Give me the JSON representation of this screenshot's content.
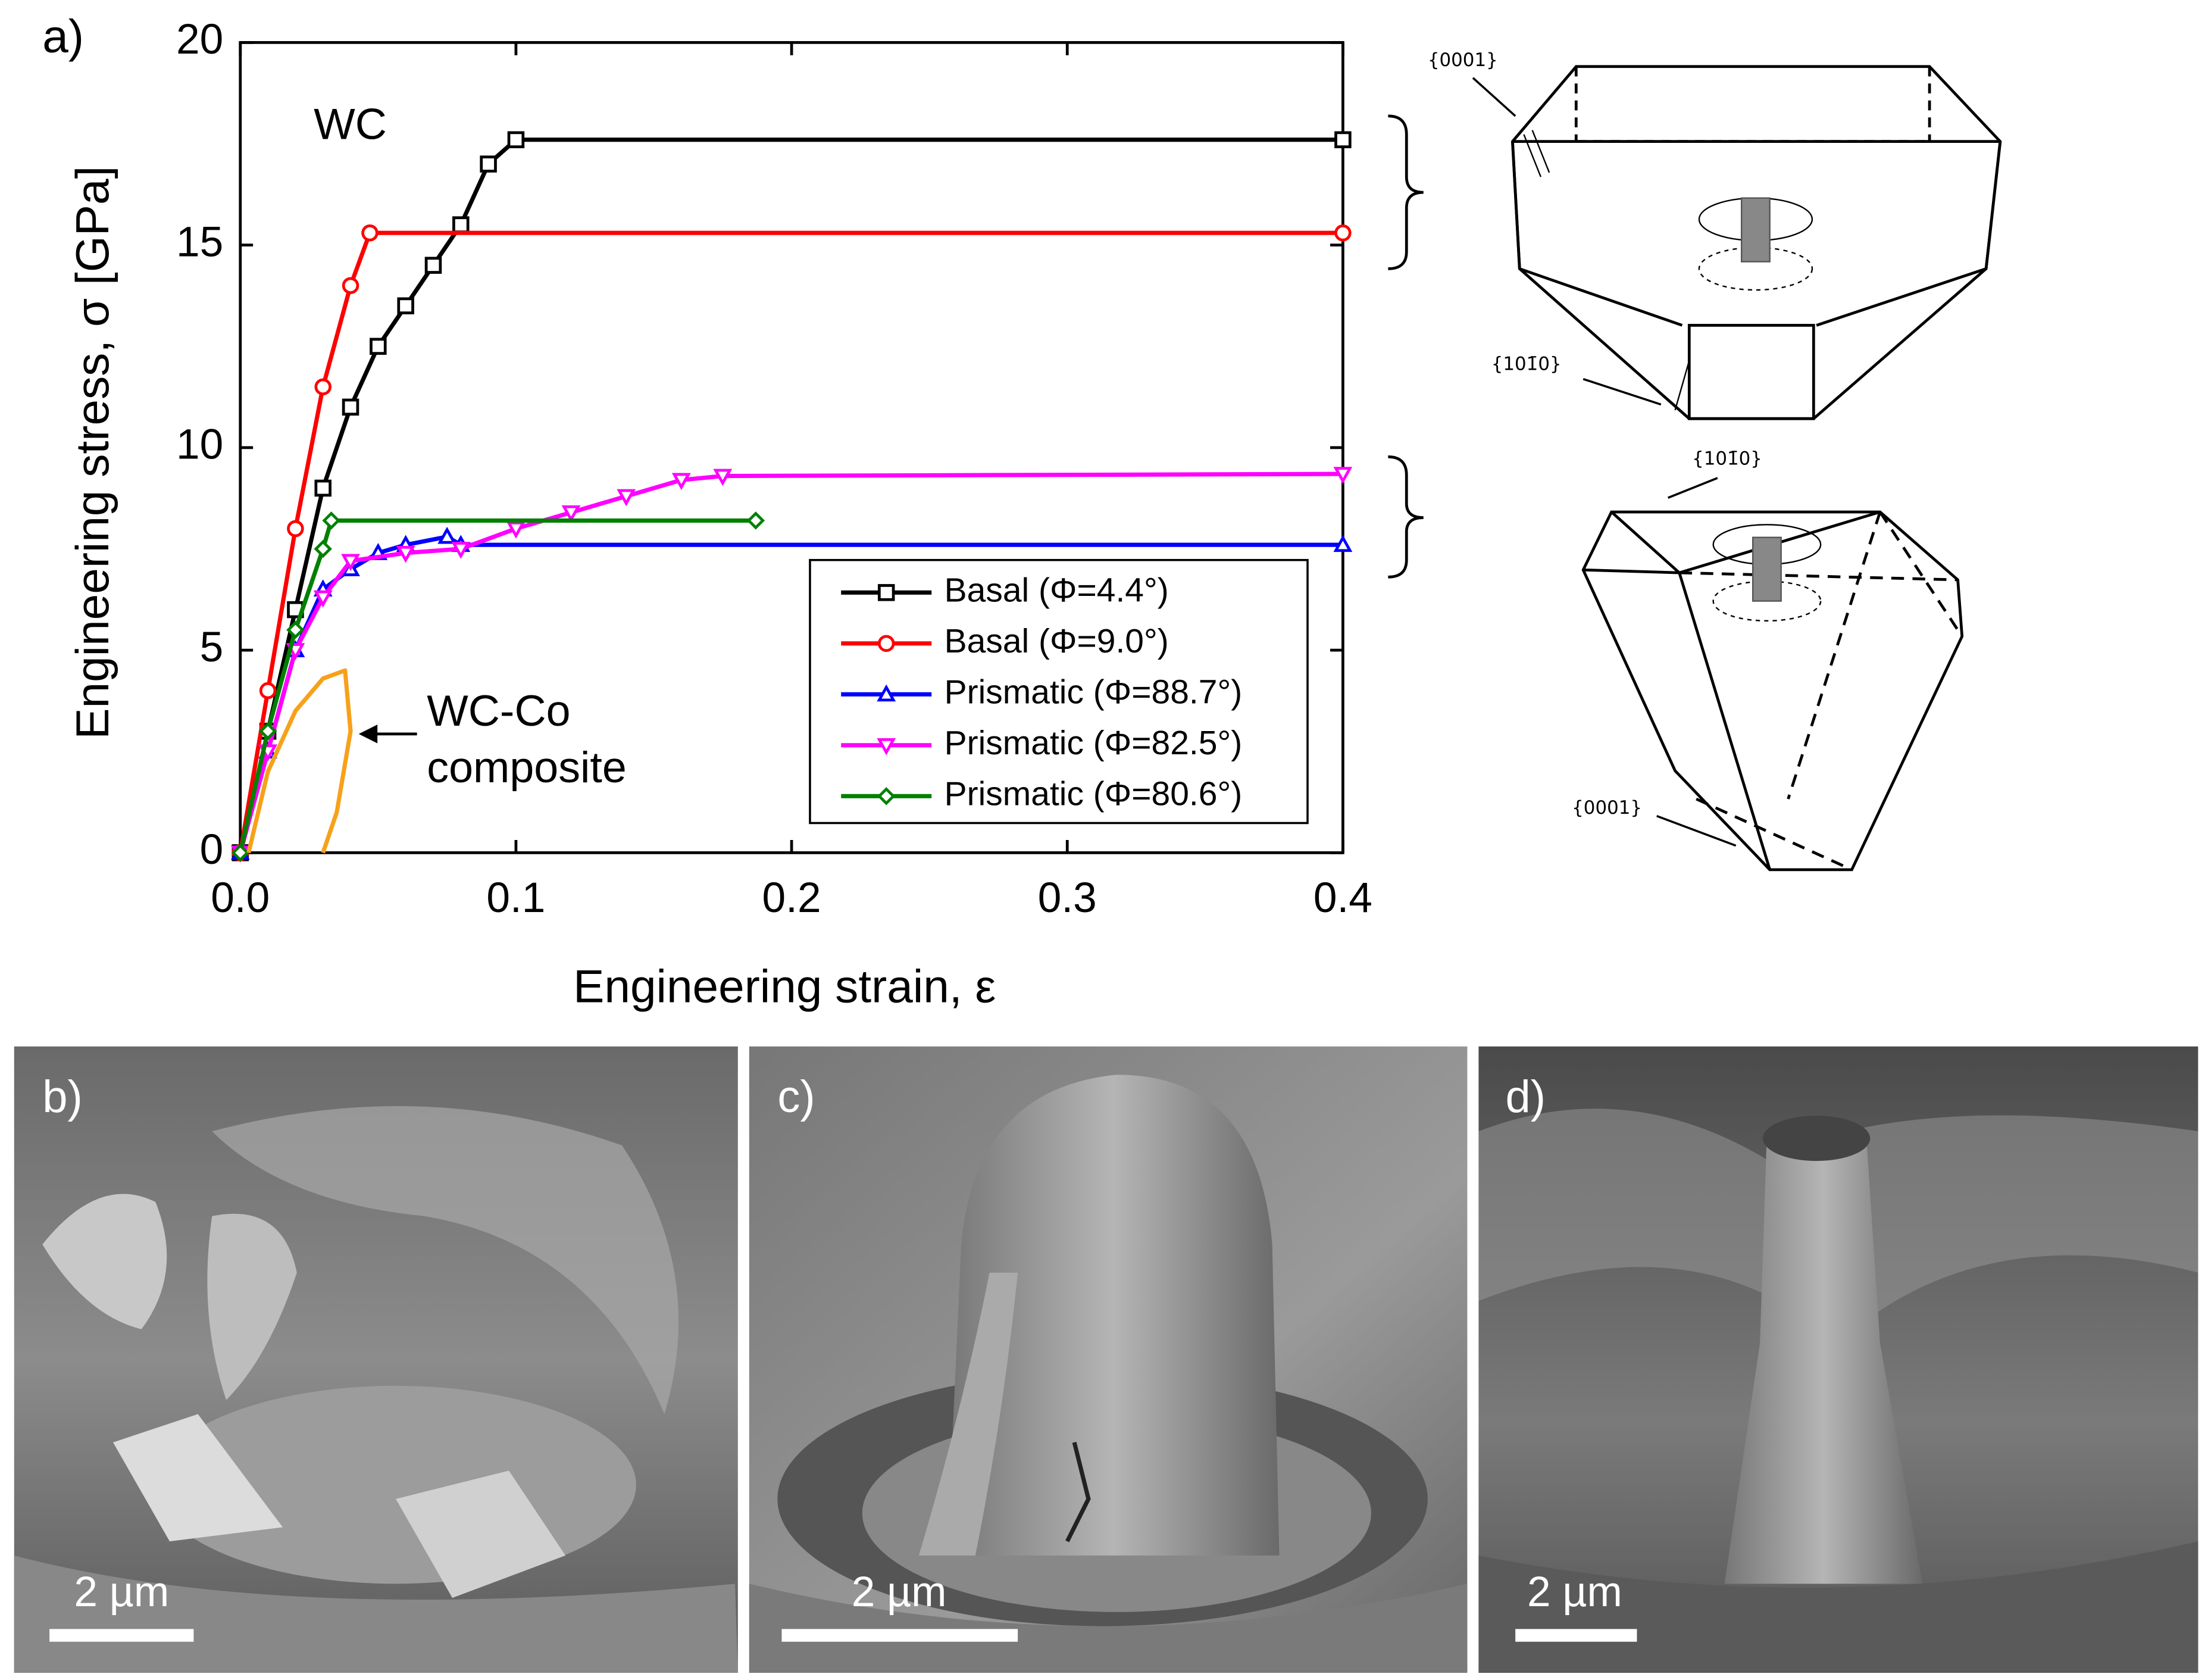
{
  "chart_data": {
    "type": "line",
    "xlabel": "Engineering strain, ε",
    "ylabel": "Engineering stress, σ [GPa]",
    "xlim": [
      0,
      0.4
    ],
    "ylim": [
      0,
      20
    ],
    "xticks": [
      {
        "value": 0,
        "label": "0.0"
      },
      0.1,
      0.2,
      0.3,
      0.4
    ],
    "yticks": [
      0,
      5,
      10,
      15,
      20
    ],
    "legend": "lower right",
    "annotations": [
      "WC",
      "WC-Co",
      "composite"
    ],
    "series": [
      {
        "name": "Basal (Φ=4.4°)",
        "color": "#000000",
        "marker": "square",
        "x": [
          0,
          0.01,
          0.02,
          0.03,
          0.04,
          0.05,
          0.06,
          0.07,
          0.08,
          0.09,
          0.1,
          0.4
        ],
        "values": [
          0,
          3,
          6,
          9,
          11,
          12.5,
          13.5,
          14.5,
          15.5,
          17,
          17.6,
          17.6
        ]
      },
      {
        "name": "Basal (Φ=9.0°)",
        "color": "#ff0000",
        "marker": "circle",
        "x": [
          0,
          0.01,
          0.02,
          0.03,
          0.04,
          0.047,
          0.4
        ],
        "values": [
          0,
          4,
          8,
          11.5,
          14,
          15.3,
          15.3
        ]
      },
      {
        "name": "Prismatic (Φ=88.7°)",
        "color": "#0000ff",
        "marker": "triangle-up",
        "x": [
          0,
          0.01,
          0.02,
          0.03,
          0.04,
          0.05,
          0.06,
          0.075,
          0.08,
          0.4
        ],
        "values": [
          0,
          2.5,
          5,
          6.5,
          7,
          7.4,
          7.6,
          7.8,
          7.6,
          7.6
        ]
      },
      {
        "name": "Prismatic (Φ=82.5°)",
        "color": "#ff00ff",
        "marker": "triangle-down",
        "x": [
          0,
          0.01,
          0.02,
          0.03,
          0.04,
          0.06,
          0.08,
          0.1,
          0.12,
          0.14,
          0.16,
          0.175,
          0.4
        ],
        "values": [
          0,
          2.5,
          5,
          6.3,
          7.2,
          7.4,
          7.5,
          8,
          8.4,
          8.8,
          9.2,
          9.3,
          9.35
        ]
      },
      {
        "name": "Prismatic (Φ=80.6°)",
        "color": "#008000",
        "marker": "diamond",
        "x": [
          0,
          0.01,
          0.02,
          0.03,
          0.033,
          0.187
        ],
        "values": [
          0,
          3,
          5.5,
          7.5,
          8.2,
          8.2
        ]
      },
      {
        "color": "#f7a11a",
        "marker": "none",
        "x": [
          0.003,
          0.01,
          0.02,
          0.03,
          0.038,
          0.04,
          0.035,
          0.03
        ],
        "values": [
          0,
          2,
          3.5,
          4.3,
          4.5,
          3,
          1,
          0
        ]
      }
    ]
  },
  "panel_labels": [
    "a)",
    "b)",
    "c)",
    "d)"
  ],
  "scale_bars": [
    "2 µm",
    "2 µm",
    "2 µm"
  ],
  "diagram_labels": [
    "{0001}",
    "{101̄0}",
    "{101̄0}",
    "{0001}"
  ]
}
